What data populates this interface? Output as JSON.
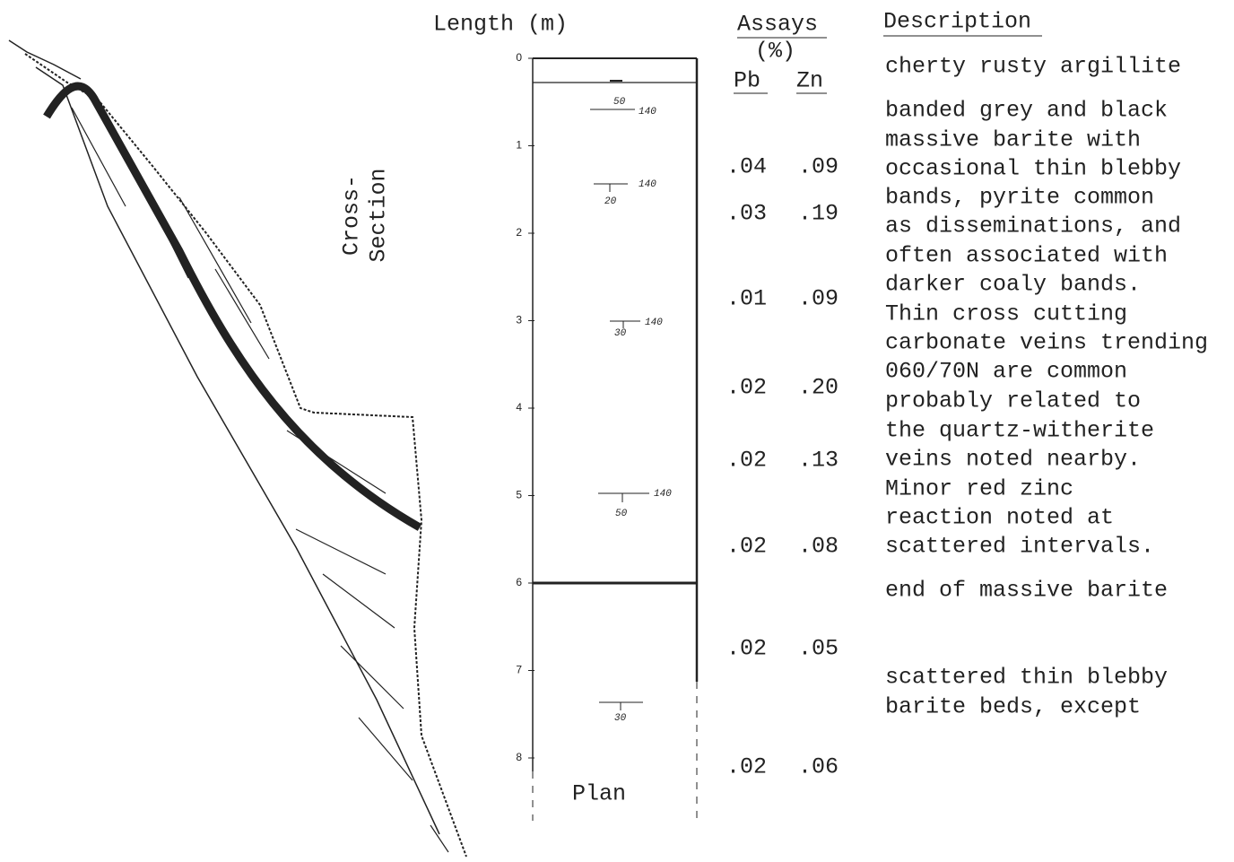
{
  "header": {
    "length": "Length (m)",
    "assays": "Assays",
    "assay_units": "(%)",
    "pb": "Pb",
    "zn": "Zn",
    "description": "Description"
  },
  "cross_section": {
    "line1": "Cross-",
    "line2": "Section"
  },
  "log": {
    "ticks": [
      0,
      1,
      2,
      3,
      4,
      5,
      6,
      7,
      8
    ],
    "plan": "Plan",
    "annotations": [
      [
        "50",
        "140"
      ],
      [
        "140",
        "20"
      ],
      [
        "140",
        "30"
      ],
      [
        "140",
        "50"
      ],
      [
        "30"
      ]
    ]
  },
  "assays": [
    [
      ".04",
      ".09"
    ],
    [
      ".03",
      ".19"
    ],
    [
      ".01",
      ".09"
    ],
    [
      ".02",
      ".20"
    ],
    [
      ".02",
      ".13"
    ],
    [
      ".02",
      ".08"
    ],
    [
      ".02",
      ".05"
    ],
    [
      ".02",
      ".06"
    ]
  ],
  "description": [
    "cherty rusty argillite",
    "banded grey and black",
    "massive barite with",
    "occasional thin blebby",
    "bands, pyrite common",
    "as disseminations, and",
    "often associated with",
    "darker coaly bands.",
    "Thin cross cutting",
    "carbonate veins trending",
    "060/70N are common",
    "probably related to",
    "the quartz-witherite",
    "veins noted nearby.",
    "Minor red zinc",
    "reaction noted at",
    "scattered intervals.",
    "end of massive barite",
    "scattered thin blebby",
    "barite beds, except"
  ]
}
